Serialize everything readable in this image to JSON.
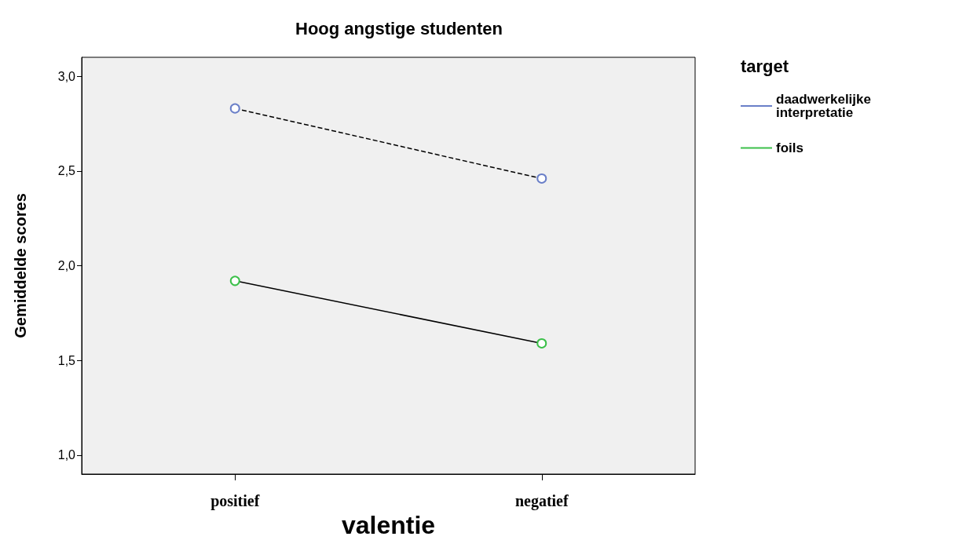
{
  "chart_data": {
    "type": "line",
    "title": "Hoog angstige studenten",
    "xlabel": "valentie",
    "ylabel": "Gemiddelde scores",
    "legend_title": "target",
    "legend": "top right",
    "grid": false,
    "marker": "circle",
    "categories": [
      "positief",
      "negatief"
    ],
    "ylim": [
      0.9,
      3.1
    ],
    "yticks": [
      {
        "value": 1,
        "label": "1,0"
      },
      {
        "value": 1.5,
        "label": "1,5"
      },
      {
        "value": 2,
        "label": "2,0"
      },
      {
        "value": 2.5,
        "label": "2,5"
      },
      {
        "value": 3,
        "label": "3,0"
      }
    ],
    "series": [
      {
        "name": "daadwerkelijke\ninterpretatie",
        "color": "#6a7fc8",
        "line_style": "dashed",
        "values": [
          2.83,
          2.46
        ]
      },
      {
        "name": "foils",
        "color": "#3cc04a",
        "line_style": "solid",
        "values": [
          1.92,
          1.59
        ]
      }
    ]
  }
}
